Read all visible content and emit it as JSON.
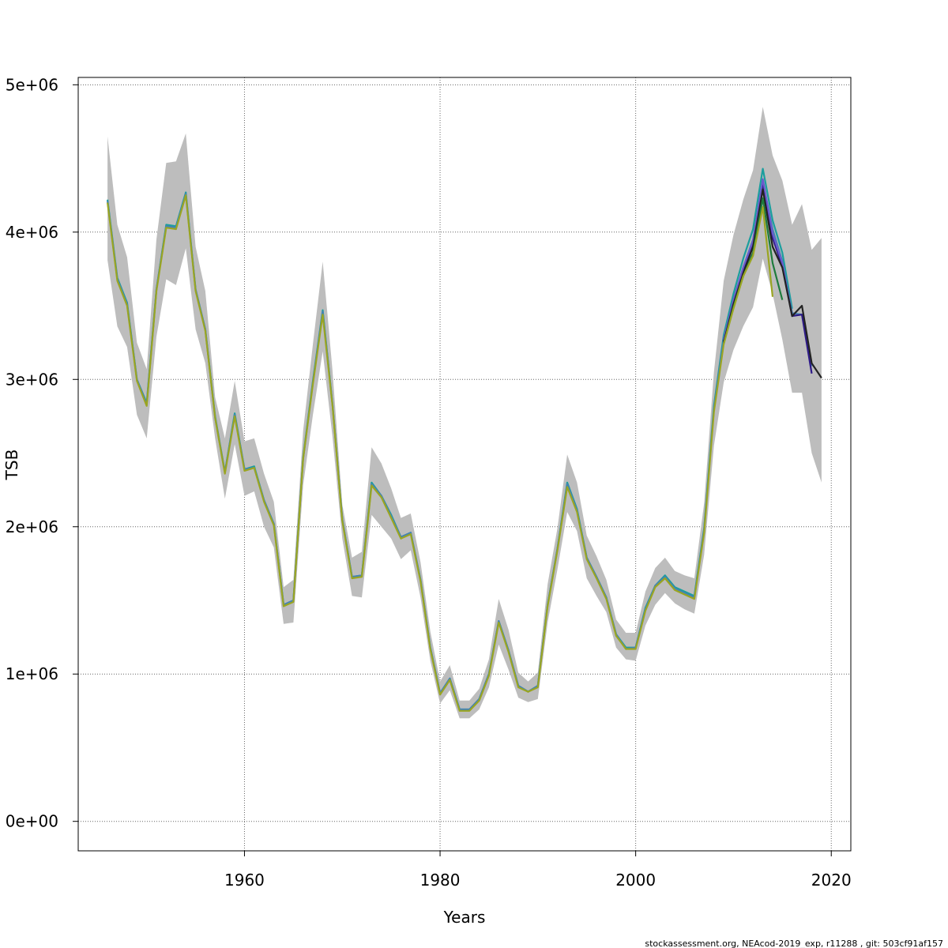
{
  "chart_data": {
    "type": "line",
    "title": "",
    "xlabel": "Years",
    "ylabel": "TSB",
    "xlim": [
      1943,
      2022
    ],
    "ylim": [
      -200000,
      5050000
    ],
    "xticks": [
      1960,
      1980,
      2000,
      2020
    ],
    "xtick_labels": [
      "1960",
      "1980",
      "2000",
      "2020"
    ],
    "yticks": [
      0,
      1000000,
      2000000,
      3000000,
      4000000,
      5000000
    ],
    "ytick_labels": [
      "0e+00",
      "1e+06",
      "2e+06",
      "3e+06",
      "4e+06",
      "5e+06"
    ],
    "grid": true,
    "legend": "none",
    "band": {
      "x": [
        1946,
        1947,
        1948,
        1949,
        1950,
        1951,
        1952,
        1953,
        1954,
        1955,
        1956,
        1957,
        1958,
        1959,
        1960,
        1961,
        1962,
        1963,
        1964,
        1965,
        1966,
        1967,
        1968,
        1969,
        1970,
        1971,
        1972,
        1973,
        1974,
        1975,
        1976,
        1977,
        1978,
        1979,
        1980,
        1981,
        1982,
        1983,
        1984,
        1985,
        1986,
        1987,
        1988,
        1989,
        1990,
        1991,
        1992,
        1993,
        1994,
        1995,
        1996,
        1997,
        1998,
        1999,
        2000,
        2001,
        2002,
        2003,
        2004,
        2005,
        2006,
        2007,
        2008,
        2009,
        2010,
        2011,
        2012,
        2013,
        2014,
        2015,
        2016,
        2017,
        2018,
        2019
      ],
      "upper": [
        4650000,
        4050000,
        3830000,
        3250000,
        3070000,
        3950000,
        4470000,
        4480000,
        4670000,
        3900000,
        3600000,
        2880000,
        2600000,
        2990000,
        2580000,
        2600000,
        2360000,
        2170000,
        1590000,
        1640000,
        2650000,
        3240000,
        3800000,
        3060000,
        2150000,
        1790000,
        1830000,
        2540000,
        2430000,
        2260000,
        2060000,
        2090000,
        1760000,
        1290000,
        950000,
        1060000,
        820000,
        820000,
        900000,
        1100000,
        1510000,
        1300000,
        1010000,
        950000,
        1010000,
        1610000,
        1990000,
        2490000,
        2300000,
        1940000,
        1800000,
        1640000,
        1370000,
        1280000,
        1280000,
        1560000,
        1720000,
        1790000,
        1700000,
        1670000,
        1650000,
        2160000,
        3050000,
        3670000,
        3980000,
        4220000,
        4420000,
        4850000,
        4520000,
        4350000,
        4050000,
        4190000,
        3880000,
        3960000
      ],
      "lower": [
        3810000,
        3360000,
        3220000,
        2760000,
        2600000,
        3290000,
        3680000,
        3640000,
        3890000,
        3340000,
        3110000,
        2600000,
        2190000,
        2560000,
        2210000,
        2240000,
        2000000,
        1860000,
        1340000,
        1350000,
        2280000,
        2760000,
        3190000,
        2610000,
        1920000,
        1530000,
        1520000,
        2080000,
        2000000,
        1920000,
        1780000,
        1840000,
        1520000,
        1090000,
        800000,
        890000,
        700000,
        700000,
        760000,
        910000,
        1200000,
        1030000,
        840000,
        810000,
        830000,
        1350000,
        1710000,
        2100000,
        1970000,
        1650000,
        1530000,
        1420000,
        1180000,
        1100000,
        1090000,
        1330000,
        1470000,
        1550000,
        1480000,
        1440000,
        1410000,
        1810000,
        2550000,
        2980000,
        3200000,
        3360000,
        3490000,
        3820000,
        3580000,
        3270000,
        2910000,
        2910000,
        2500000,
        2300000
      ]
    },
    "series": [
      {
        "color": "#1b9e9e",
        "x": [
          1946,
          1947,
          1948,
          1949,
          1950,
          1951,
          1952,
          1953,
          1954,
          1955,
          1956,
          1957,
          1958,
          1959,
          1960,
          1961,
          1962,
          1963,
          1964,
          1965,
          1966,
          1967,
          1968,
          1969,
          1970,
          1971,
          1972,
          1973,
          1974,
          1975,
          1976,
          1977,
          1978,
          1979,
          1980,
          1981,
          1982,
          1983,
          1984,
          1985,
          1986,
          1987,
          1988,
          1989,
          1990,
          1991,
          1992,
          1993,
          1994,
          1995,
          1996,
          1997,
          1998,
          1999,
          2000,
          2001,
          2002,
          2003,
          2004,
          2005,
          2006,
          2007,
          2008,
          2009,
          2010,
          2011,
          2012,
          2013,
          2014,
          2015,
          2016
        ],
        "y": [
          4220000,
          3690000,
          3520000,
          3000000,
          2840000,
          3610000,
          4050000,
          4040000,
          4270000,
          3610000,
          3340000,
          2750000,
          2370000,
          2770000,
          2390000,
          2410000,
          2180000,
          2020000,
          1470000,
          1500000,
          2470000,
          2990000,
          3470000,
          2830000,
          2050000,
          1660000,
          1670000,
          2300000,
          2210000,
          2080000,
          1930000,
          1960000,
          1640000,
          1180000,
          870000,
          970000,
          760000,
          760000,
          830000,
          1000000,
          1360000,
          1160000,
          920000,
          880000,
          920000,
          1470000,
          1850000,
          2300000,
          2120000,
          1790000,
          1660000,
          1520000,
          1270000,
          1180000,
          1180000,
          1450000,
          1600000,
          1670000,
          1590000,
          1560000,
          1530000,
          1990000,
          2820000,
          3300000,
          3580000,
          3820000,
          4020000,
          4430000,
          4080000,
          3860000,
          3480000
        ]
      },
      {
        "color": "#4682b4",
        "x": [
          1946,
          1947,
          1948,
          1949,
          1950,
          1951,
          1952,
          1953,
          1954,
          1955,
          1956,
          1957,
          1958,
          1959,
          1960,
          1961,
          1962,
          1963,
          1964,
          1965,
          1966,
          1967,
          1968,
          1969,
          1970,
          1971,
          1972,
          1973,
          1974,
          1975,
          1976,
          1977,
          1978,
          1979,
          1980,
          1981,
          1982,
          1983,
          1984,
          1985,
          1986,
          1987,
          1988,
          1989,
          1990,
          1991,
          1992,
          1993,
          1994,
          1995,
          1996,
          1997,
          1998,
          1999,
          2000,
          2001,
          2002,
          2003,
          2004,
          2005,
          2006,
          2007,
          2008,
          2009,
          2010,
          2011,
          2012,
          2013,
          2014,
          2015,
          2016,
          2017,
          2018
        ],
        "y": [
          4210000,
          3680000,
          3510000,
          3000000,
          2830000,
          3610000,
          4040000,
          4030000,
          4260000,
          3610000,
          3340000,
          2740000,
          2370000,
          2760000,
          2390000,
          2400000,
          2180000,
          2020000,
          1470000,
          1500000,
          2460000,
          2980000,
          3460000,
          2830000,
          2050000,
          1660000,
          1670000,
          2290000,
          2210000,
          2070000,
          1930000,
          1960000,
          1640000,
          1180000,
          870000,
          970000,
          760000,
          760000,
          830000,
          1000000,
          1360000,
          1160000,
          920000,
          880000,
          920000,
          1470000,
          1850000,
          2290000,
          2110000,
          1790000,
          1660000,
          1520000,
          1270000,
          1170000,
          1180000,
          1440000,
          1600000,
          1660000,
          1580000,
          1550000,
          1520000,
          1980000,
          2800000,
          3270000,
          3530000,
          3760000,
          3950000,
          4340000,
          4020000,
          3800000,
          3450000,
          3440000,
          3090000
        ]
      },
      {
        "color": "#2e1a87",
        "x": [
          2009,
          2010,
          2011,
          2012,
          2013,
          2014,
          2015,
          2016,
          2017,
          2018
        ],
        "y": [
          3260000,
          3520000,
          3740000,
          3920000,
          4330000,
          3960000,
          3770000,
          3430000,
          3440000,
          3040000
        ]
      },
      {
        "color": "#6a5acd",
        "x": [
          2009,
          2010,
          2011,
          2012,
          2013,
          2014,
          2015,
          2016
        ],
        "y": [
          3270000,
          3540000,
          3760000,
          3940000,
          4360000,
          3990000,
          3790000,
          3430000
        ]
      },
      {
        "color": "#222222",
        "x": [
          2009,
          2010,
          2011,
          2012,
          2013,
          2014,
          2015,
          2016,
          2017,
          2018,
          2019
        ],
        "y": [
          3250000,
          3510000,
          3720000,
          3900000,
          4290000,
          3900000,
          3760000,
          3430000,
          3500000,
          3110000,
          3010000
        ]
      },
      {
        "color": "#1e7b3c",
        "x": [
          2009,
          2010,
          2011,
          2012,
          2013,
          2014,
          2015
        ],
        "y": [
          3240000,
          3490000,
          3700000,
          3860000,
          4230000,
          3790000,
          3540000
        ]
      },
      {
        "color": "#9aa522",
        "x": [
          1946,
          1947,
          1948,
          1949,
          1950,
          1951,
          1952,
          1953,
          1954,
          1955,
          1956,
          1957,
          1958,
          1959,
          1960,
          1961,
          1962,
          1963,
          1964,
          1965,
          1966,
          1967,
          1968,
          1969,
          1970,
          1971,
          1972,
          1973,
          1974,
          1975,
          1976,
          1977,
          1978,
          1979,
          1980,
          1981,
          1982,
          1983,
          1984,
          1985,
          1986,
          1987,
          1988,
          1989,
          1990,
          1991,
          1992,
          1993,
          1994,
          1995,
          1996,
          1997,
          1998,
          1999,
          2000,
          2001,
          2002,
          2003,
          2004,
          2005,
          2006,
          2007,
          2008,
          2009,
          2010,
          2011,
          2012,
          2013,
          2014
        ],
        "y": [
          4200000,
          3670000,
          3500000,
          2990000,
          2820000,
          3600000,
          4030000,
          4020000,
          4250000,
          3600000,
          3330000,
          2740000,
          2360000,
          2750000,
          2380000,
          2400000,
          2170000,
          2010000,
          1460000,
          1490000,
          2460000,
          2970000,
          3440000,
          2820000,
          2040000,
          1650000,
          1660000,
          2280000,
          2200000,
          2060000,
          1920000,
          1950000,
          1630000,
          1170000,
          860000,
          960000,
          750000,
          750000,
          820000,
          990000,
          1350000,
          1150000,
          910000,
          880000,
          910000,
          1460000,
          1840000,
          2270000,
          2100000,
          1780000,
          1650000,
          1510000,
          1260000,
          1170000,
          1170000,
          1430000,
          1590000,
          1650000,
          1570000,
          1540000,
          1510000,
          1960000,
          2780000,
          3240000,
          3480000,
          3700000,
          3840000,
          4170000,
          3560000
        ]
      }
    ]
  },
  "footer": "stockassessment.org, NEAcod-2019_exp, r11288 , git: 503cf91af157"
}
